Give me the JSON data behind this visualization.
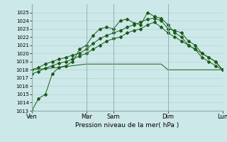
{
  "background_color": "#cde8e8",
  "plot_bg": "#cde8e8",
  "line_color": "#1a5c1a",
  "line_color2": "#2d8c2d",
  "ylim": [
    1013,
    1026
  ],
  "yticks": [
    1013,
    1014,
    1015,
    1016,
    1017,
    1018,
    1019,
    1020,
    1021,
    1022,
    1023,
    1024,
    1025
  ],
  "xlabel": "Pression niveau de la mer( hPa )",
  "day_labels": [
    "Ven",
    "",
    "Mar",
    "Sam",
    "",
    "Dim",
    "",
    "Lun"
  ],
  "day_positions": [
    0,
    4,
    8,
    12,
    16,
    20,
    24,
    28
  ],
  "day_tick_labels": [
    "Ven",
    "Mar",
    "Sam",
    "Dim",
    "Lun"
  ],
  "day_tick_pos": [
    0,
    8,
    12,
    20,
    28
  ],
  "series1_x": [
    0,
    1,
    2,
    3,
    4,
    5,
    6,
    7,
    8,
    9,
    10,
    11,
    12,
    13,
    14,
    15,
    16,
    17,
    18,
    19,
    20,
    21,
    22,
    23,
    24,
    25,
    26,
    27,
    28
  ],
  "series1": [
    1013.0,
    1014.5,
    1015.0,
    1017.5,
    1018.3,
    1018.5,
    1019.0,
    1020.5,
    1021.0,
    1022.2,
    1023.0,
    1023.2,
    1023.0,
    1024.0,
    1024.2,
    1023.7,
    1023.5,
    1025.0,
    1024.5,
    1024.3,
    1023.5,
    1022.5,
    1022.0,
    1021.0,
    1020.5,
    1020.0,
    1019.5,
    1019.0,
    1018.0
  ],
  "series2_x": [
    0,
    4,
    5,
    6,
    7,
    8,
    9,
    10,
    11,
    12,
    13,
    14,
    15,
    16,
    17,
    18,
    19,
    20,
    21,
    22,
    23,
    24,
    25,
    26,
    27,
    28
  ],
  "series2": [
    1018.0,
    1018.3,
    1018.4,
    1018.5,
    1018.6,
    1018.7,
    1018.7,
    1018.7,
    1018.7,
    1018.7,
    1018.7,
    1018.7,
    1018.7,
    1018.7,
    1018.7,
    1018.7,
    1018.7,
    1018.0,
    1018.0,
    1018.0,
    1018.0,
    1018.0,
    1018.0,
    1018.0,
    1018.0,
    1018.0
  ],
  "series3_x": [
    0,
    1,
    2,
    3,
    4,
    5,
    6,
    7,
    8,
    9,
    10,
    11,
    12,
    13,
    14,
    15,
    16,
    17,
    18,
    19,
    20,
    21,
    22,
    23,
    24,
    25,
    26,
    27,
    28
  ],
  "series3": [
    1018.0,
    1018.3,
    1018.7,
    1019.0,
    1019.3,
    1019.5,
    1019.8,
    1020.0,
    1020.5,
    1021.2,
    1021.8,
    1022.2,
    1022.5,
    1022.8,
    1023.2,
    1023.5,
    1023.8,
    1024.2,
    1024.3,
    1024.0,
    1023.0,
    1022.8,
    1022.5,
    1021.5,
    1021.0,
    1020.0,
    1019.5,
    1019.0,
    1018.0
  ],
  "series4_x": [
    0,
    1,
    2,
    3,
    4,
    5,
    6,
    7,
    8,
    9,
    10,
    11,
    12,
    13,
    14,
    15,
    16,
    17,
    18,
    19,
    20,
    21,
    22,
    23,
    24,
    25,
    26,
    27,
    28
  ],
  "series4": [
    1017.5,
    1017.8,
    1018.2,
    1018.5,
    1018.8,
    1019.0,
    1019.3,
    1019.7,
    1020.0,
    1020.5,
    1021.0,
    1021.5,
    1021.8,
    1022.0,
    1022.5,
    1022.8,
    1023.0,
    1023.5,
    1023.8,
    1023.2,
    1022.5,
    1022.0,
    1021.5,
    1021.0,
    1020.5,
    1019.5,
    1019.0,
    1018.5,
    1018.0
  ],
  "vline_positions": [
    0,
    8,
    12,
    20,
    28
  ],
  "grid_color": "#b0cccc",
  "tick_fontsize": 5,
  "xlabel_fontsize": 6.5
}
